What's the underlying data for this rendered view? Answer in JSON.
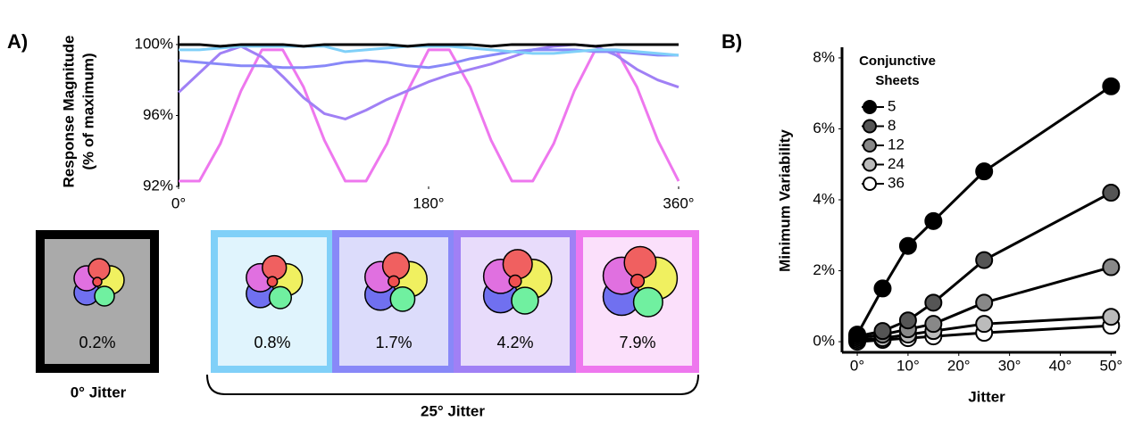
{
  "panel_labels": [
    "A)",
    "B)"
  ],
  "chart_data": [
    {
      "type": "line",
      "ylabel": [
        "Response Magnitude",
        "(% of maximum)"
      ],
      "x": [
        0,
        15,
        30,
        45,
        60,
        75,
        90,
        105,
        120,
        135,
        150,
        165,
        180,
        195,
        210,
        225,
        240,
        255,
        270,
        285,
        300,
        315,
        330,
        345,
        360
      ],
      "xlim": [
        0,
        360
      ],
      "xticks": [
        {
          "value": 0,
          "label": "0°"
        },
        {
          "value": 180,
          "label": "180°"
        },
        {
          "value": 360,
          "label": "360°"
        }
      ],
      "ylim": [
        92,
        100.5
      ],
      "yticks": [
        {
          "value": 92,
          "label": "92%"
        },
        {
          "value": 96,
          "label": "96%"
        },
        {
          "value": 100,
          "label": "100%"
        }
      ],
      "series": [
        {
          "color": "#ee77ee",
          "values": [
            92.3,
            92.3,
            94.4,
            97.4,
            99.7,
            99.7,
            97.6,
            94.6,
            92.3,
            92.3,
            94.4,
            97.4,
            99.7,
            99.7,
            97.6,
            94.6,
            92.3,
            92.3,
            94.4,
            97.4,
            99.7,
            99.7,
            97.6,
            94.6,
            92.3
          ]
        },
        {
          "color": "#a080f5",
          "values": [
            97.3,
            98.4,
            99.5,
            99.9,
            99.3,
            98.2,
            97.0,
            96.1,
            95.8,
            96.3,
            96.9,
            97.4,
            97.9,
            98.3,
            98.6,
            98.9,
            99.3,
            99.7,
            99.9,
            100.0,
            99.9,
            99.4,
            98.6,
            98.0,
            97.6
          ]
        },
        {
          "color": "#8888f8",
          "values": [
            99.1,
            99.0,
            98.9,
            98.8,
            98.8,
            98.7,
            98.7,
            98.8,
            99.0,
            99.1,
            99.0,
            98.8,
            98.7,
            98.9,
            99.2,
            99.4,
            99.6,
            99.7,
            99.7,
            99.7,
            99.6,
            99.6,
            99.5,
            99.4,
            99.4
          ]
        },
        {
          "color": "#80d0f8",
          "values": [
            99.7,
            99.7,
            99.8,
            99.9,
            99.9,
            99.9,
            99.9,
            99.9,
            99.6,
            99.7,
            99.8,
            99.9,
            99.9,
            99.9,
            99.8,
            99.7,
            99.6,
            99.5,
            99.5,
            99.6,
            99.7,
            99.7,
            99.6,
            99.5,
            99.4
          ]
        },
        {
          "color": "#000000",
          "values": [
            100.0,
            100.0,
            99.9,
            100.0,
            100.0,
            100.0,
            99.9,
            100.0,
            100.0,
            100.0,
            100.0,
            99.9,
            100.0,
            100.0,
            100.0,
            99.9,
            100.0,
            100.0,
            100.0,
            100.0,
            99.9,
            100.0,
            100.0,
            100.0,
            100.0
          ]
        }
      ]
    },
    {
      "type": "line",
      "markers": true,
      "ylabel": "Minimum Variability",
      "xlabel": "Jitter",
      "legend_title": "Conjunctive Sheets",
      "x": [
        0,
        5,
        10,
        15,
        25,
        50
      ],
      "xlim": [
        -3,
        51
      ],
      "xticks": [
        {
          "value": 0,
          "label": "0°"
        },
        {
          "value": 10,
          "label": "10°"
        },
        {
          "value": 20,
          "label": "20°"
        },
        {
          "value": 30,
          "label": "30°"
        },
        {
          "value": 40,
          "label": "40°"
        },
        {
          "value": 50,
          "label": "50°"
        }
      ],
      "ylim": [
        -0.3,
        8.3
      ],
      "yticks": [
        {
          "value": 0,
          "label": "0%"
        },
        {
          "value": 2,
          "label": "2%"
        },
        {
          "value": 4,
          "label": "4%"
        },
        {
          "value": 6,
          "label": "6%"
        },
        {
          "value": 8,
          "label": "8%"
        }
      ],
      "series": [
        {
          "name": "36",
          "color": "#ffffff",
          "values": [
            0.0,
            0.05,
            0.1,
            0.15,
            0.25,
            0.45
          ]
        },
        {
          "name": "24",
          "color": "#bbbbbb",
          "values": [
            0.05,
            0.1,
            0.2,
            0.3,
            0.5,
            0.7
          ]
        },
        {
          "name": "12",
          "color": "#888888",
          "values": [
            0.1,
            0.2,
            0.35,
            0.5,
            1.1,
            2.1
          ]
        },
        {
          "name": "8",
          "color": "#555555",
          "values": [
            0.15,
            0.3,
            0.6,
            1.1,
            2.3,
            4.2
          ]
        },
        {
          "name": "5",
          "color": "#000000",
          "values": [
            0.2,
            1.5,
            2.7,
            3.4,
            4.8,
            7.2
          ]
        }
      ]
    }
  ],
  "insets": [
    {
      "label": "0.2%",
      "color": "#000000",
      "fill": "#aaaaaa"
    },
    {
      "label": "0.8%",
      "color": "#80d0f8",
      "fill": "#e0f4fd"
    },
    {
      "label": "1.7%",
      "color": "#8888f8",
      "fill": "#dcdcfb"
    },
    {
      "label": "4.2%",
      "color": "#a080f5",
      "fill": "#e8dcfb"
    },
    {
      "label": "7.9%",
      "color": "#ee77ee",
      "fill": "#fbe0fb"
    }
  ],
  "inset_groups": [
    "0° Jitter",
    "25° Jitter"
  ]
}
